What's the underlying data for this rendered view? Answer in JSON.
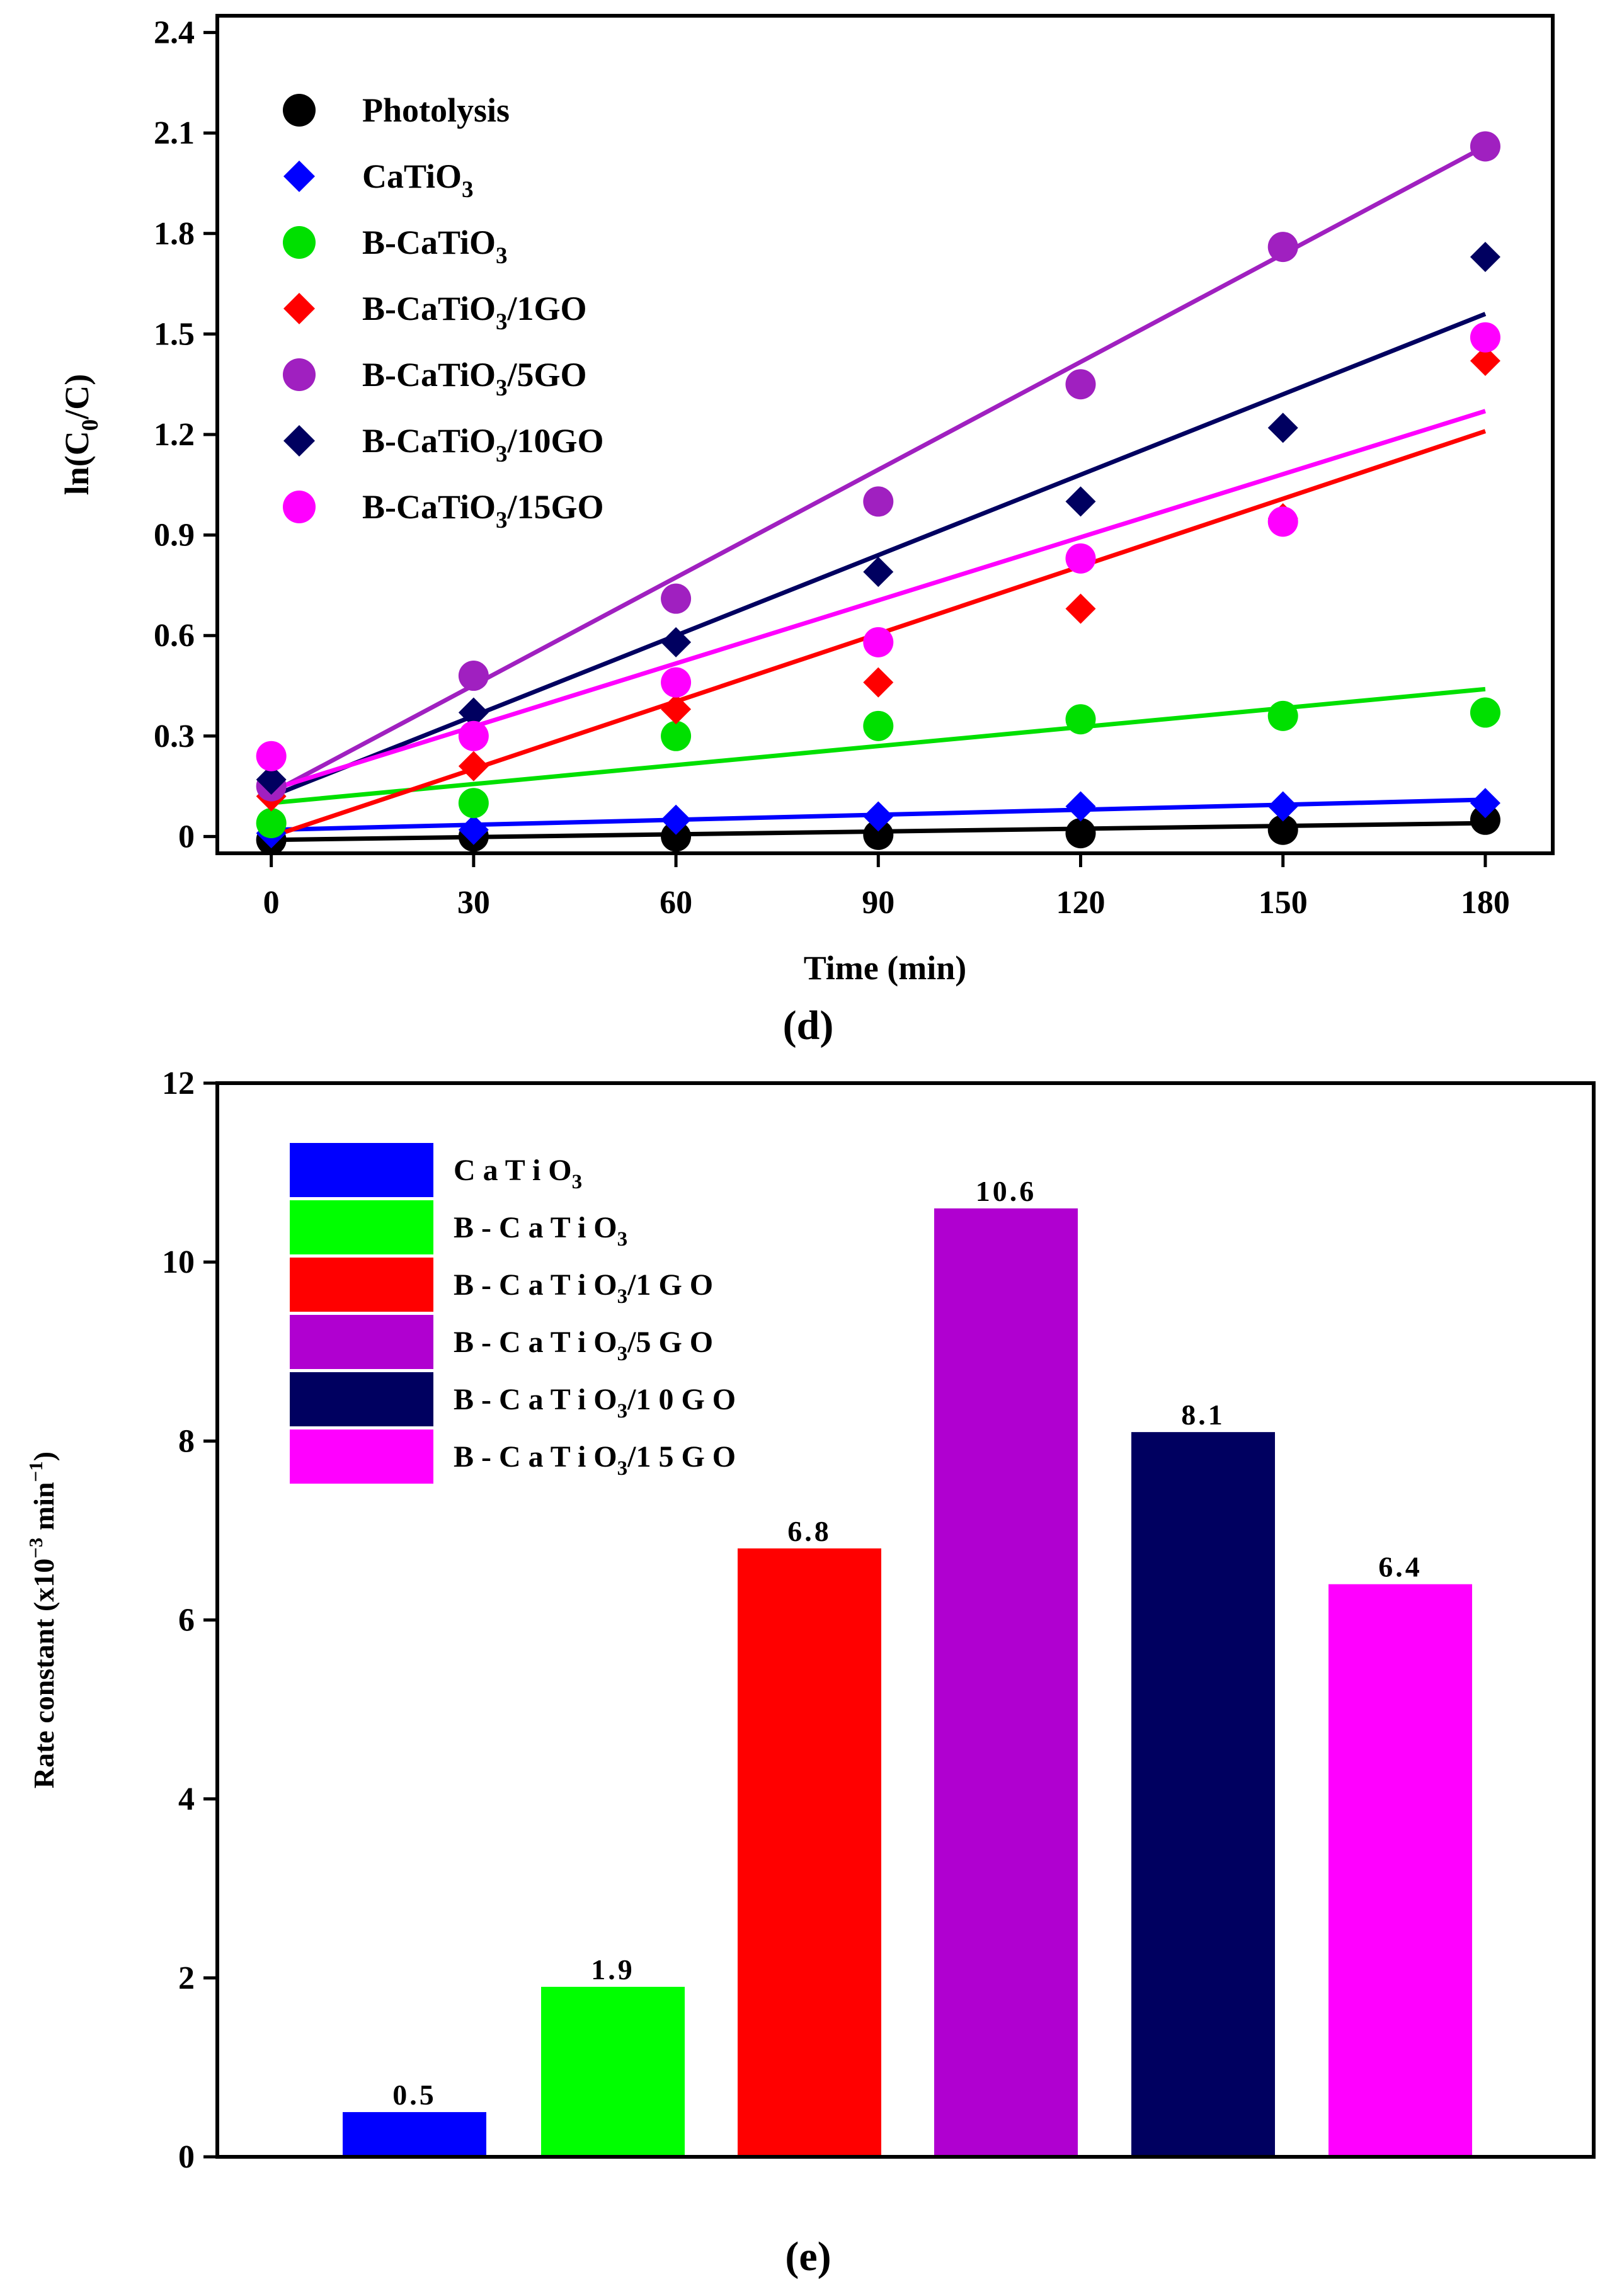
{
  "chart_data": [
    {
      "type": "scatter",
      "panel": "d",
      "panel_label": "(d)",
      "title": "",
      "xlabel": "Time (min)",
      "ylabel_parts": [
        "ln(C",
        "0",
        "/C)"
      ],
      "xlim": [
        -8,
        190
      ],
      "ylim": [
        -0.05,
        2.45
      ],
      "x_ticks": [
        0,
        30,
        60,
        90,
        120,
        150,
        180
      ],
      "y_ticks": [
        0,
        0.3,
        0.6,
        0.9,
        1.2,
        1.5,
        1.8,
        2.1,
        2.4
      ],
      "y_tick_labels": [
        "0",
        "0.3",
        "0.6",
        "0.9",
        "1.2",
        "1.5",
        "1.8",
        "2.1",
        "2.4"
      ],
      "x": [
        0,
        30,
        60,
        90,
        120,
        150,
        180
      ],
      "legend_position": "top-left",
      "series": [
        {
          "name": "Photolysis",
          "label_parts": [
            "Photolysis"
          ],
          "color": "#000000",
          "marker": "circle",
          "values": [
            -0.01,
            0.0,
            0.0,
            0.005,
            0.01,
            0.02,
            0.05
          ],
          "fit": [
            -0.01,
            0.04
          ]
        },
        {
          "name": "CaTiO3",
          "label_parts": [
            "CaTiO",
            "3",
            ""
          ],
          "color": "#0000ff",
          "marker": "diamond",
          "values": [
            0.01,
            0.02,
            0.05,
            0.06,
            0.09,
            0.09,
            0.1
          ],
          "fit": [
            0.02,
            0.11
          ]
        },
        {
          "name": "B-CaTiO3",
          "label_parts": [
            "B-CaTiO",
            "3",
            ""
          ],
          "color": "#00e000",
          "marker": "circle",
          "values": [
            0.04,
            0.1,
            0.3,
            0.33,
            0.35,
            0.36,
            0.37
          ],
          "fit": [
            0.1,
            0.44
          ]
        },
        {
          "name": "B-CaTiO3/1GO",
          "label_parts": [
            "B-CaTiO",
            "3",
            "/1GO"
          ],
          "color": "#ff0000",
          "marker": "diamond",
          "values": [
            0.12,
            0.21,
            0.38,
            0.46,
            0.68,
            0.95,
            1.42
          ],
          "fit": [
            0.0,
            1.21
          ]
        },
        {
          "name": "B-CaTiO3/5GO",
          "label_parts": [
            "B-CaTiO",
            "3",
            "/5GO"
          ],
          "color": "#a020c0",
          "marker": "circle",
          "values": [
            0.15,
            0.48,
            0.71,
            1.0,
            1.35,
            1.76,
            2.06
          ],
          "fit": [
            0.13,
            2.06
          ]
        },
        {
          "name": "B-CaTiO3/10GO",
          "label_parts": [
            "B-CaTiO",
            "3",
            "/10GO"
          ],
          "color": "#000060",
          "marker": "diamond",
          "values": [
            0.17,
            0.37,
            0.58,
            0.79,
            1.0,
            1.22,
            1.73
          ],
          "fit": [
            0.12,
            1.56
          ]
        },
        {
          "name": "B-CaTiO3/15GO",
          "label_parts": [
            "B-CaTiO",
            "3",
            "/15GO"
          ],
          "color": "#ff00ff",
          "marker": "circle",
          "values": [
            0.24,
            0.3,
            0.46,
            0.58,
            0.83,
            0.94,
            1.49
          ],
          "fit": [
            0.14,
            1.27
          ]
        }
      ]
    },
    {
      "type": "bar",
      "panel": "e",
      "panel_label": "(e)",
      "title": "",
      "xlabel": "",
      "ylabel_parts": [
        "Rate constant (x10",
        "−3",
        " min",
        "−1",
        ")"
      ],
      "ylim": [
        0,
        12
      ],
      "y_ticks": [
        0,
        2,
        4,
        6,
        8,
        10,
        12
      ],
      "y_tick_labels": [
        "0",
        "2",
        "4",
        "6",
        "8",
        "10",
        "12"
      ],
      "legend_position": "top-left",
      "categories": [
        "CaTiO3",
        "B-CaTiO3",
        "B-CaTiO3/1GO",
        "B-CaTiO3/5GO",
        "B-CaTiO3/10GO",
        "B-CaTiO3/15GO"
      ],
      "legend_parts": [
        [
          "C a T i O",
          "3",
          ""
        ],
        [
          "B - C a T i O",
          "3",
          ""
        ],
        [
          "B - C a T i O",
          "3",
          "/1 G O"
        ],
        [
          "B - C a T i O",
          "3",
          "/5 G O"
        ],
        [
          "B - C a T i O",
          "3",
          "/1 0 G O"
        ],
        [
          "B - C a T i O",
          "3",
          "/1 5 G O"
        ]
      ],
      "values": [
        0.5,
        1.9,
        6.8,
        10.6,
        8.1,
        6.4
      ],
      "value_labels": [
        "0.5",
        "1.9",
        "6.8",
        "10.6",
        "8.1",
        "6.4"
      ],
      "colors": [
        "#0000ff",
        "#00ff00",
        "#ff0000",
        "#b000d0",
        "#000060",
        "#ff00ff"
      ]
    }
  ]
}
